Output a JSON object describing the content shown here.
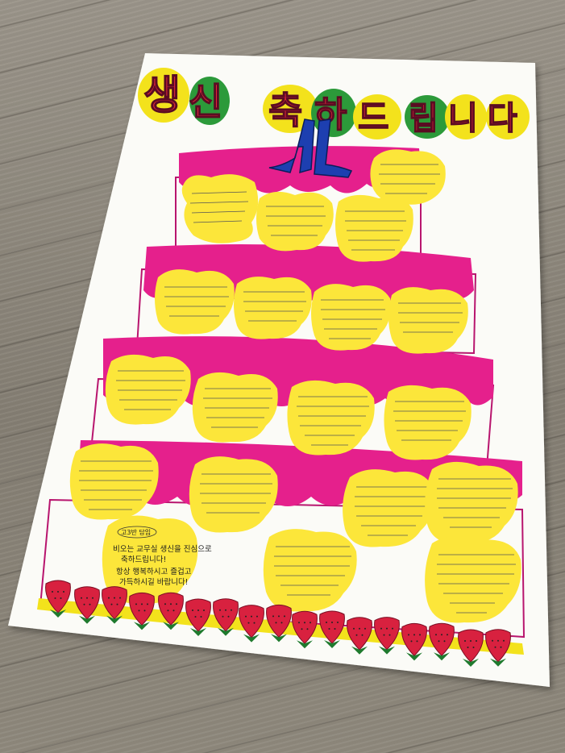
{
  "scene": "photo of a hand-drawn birthday cake poster lying on a wooden floor",
  "title": {
    "syllables": [
      "생",
      "신",
      "축",
      "하",
      "드",
      "립",
      "니",
      "다"
    ]
  },
  "topper": {
    "text": "AL"
  },
  "big_message": {
    "heading": "고3반 담임",
    "lines": [
      "비오는 교무실 생신을 진심으로",
      "축하드립니다!",
      "항상 행복하시고 즐겁고",
      "가득하시길 바랍니다!"
    ]
  },
  "colors": {
    "poster": "#fbfbf7",
    "frosting": "#e5208c",
    "note": "#fce63a",
    "title_red": "#e8283c",
    "bubble_yellow": "#f3e21c",
    "bubble_green": "#2c9a3a",
    "strawberry": "#d8213f",
    "leaf": "#1f7a2e",
    "topper_blue": "#1d3fb0"
  }
}
